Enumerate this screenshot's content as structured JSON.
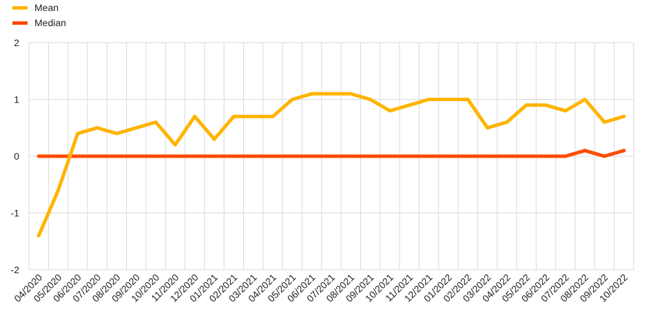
{
  "chart_data": {
    "type": "line",
    "x": [
      "04/2020",
      "05/2020",
      "06/2020",
      "07/2020",
      "08/2020",
      "09/2020",
      "10/2020",
      "11/2020",
      "12/2020",
      "01/2021",
      "02/2021",
      "03/2021",
      "04/2021",
      "05/2021",
      "06/2021",
      "07/2021",
      "08/2021",
      "09/2021",
      "10/2021",
      "11/2021",
      "12/2021",
      "01/2022",
      "02/2022",
      "03/2022",
      "04/2022",
      "05/2022",
      "06/2022",
      "07/2022",
      "08/2022",
      "09/2022",
      "10/2022"
    ],
    "series": [
      {
        "name": "Mean",
        "color": "#ffb400",
        "values": [
          -1.4,
          -0.6,
          0.4,
          0.5,
          0.4,
          0.5,
          0.6,
          0.2,
          0.7,
          0.3,
          0.7,
          0.7,
          0.7,
          1.0,
          1.1,
          1.1,
          1.1,
          1.0,
          0.8,
          0.9,
          1.0,
          1.0,
          1.0,
          0.5,
          0.6,
          0.9,
          0.9,
          0.8,
          1.0,
          0.6,
          0.7
        ]
      },
      {
        "name": "Median",
        "color": "#ff4b00",
        "values": [
          0,
          0,
          0,
          0,
          0,
          0,
          0,
          0,
          0,
          0,
          0,
          0,
          0,
          0,
          0,
          0,
          0,
          0,
          0,
          0,
          0,
          0,
          0,
          0,
          0,
          0,
          0,
          0,
          0.1,
          0,
          0.1
        ]
      }
    ],
    "yticks": [
      "2",
      "1",
      "0",
      "-1",
      "-2"
    ],
    "ylim": [
      -2,
      2
    ],
    "grid": true,
    "legend": "top-left"
  }
}
